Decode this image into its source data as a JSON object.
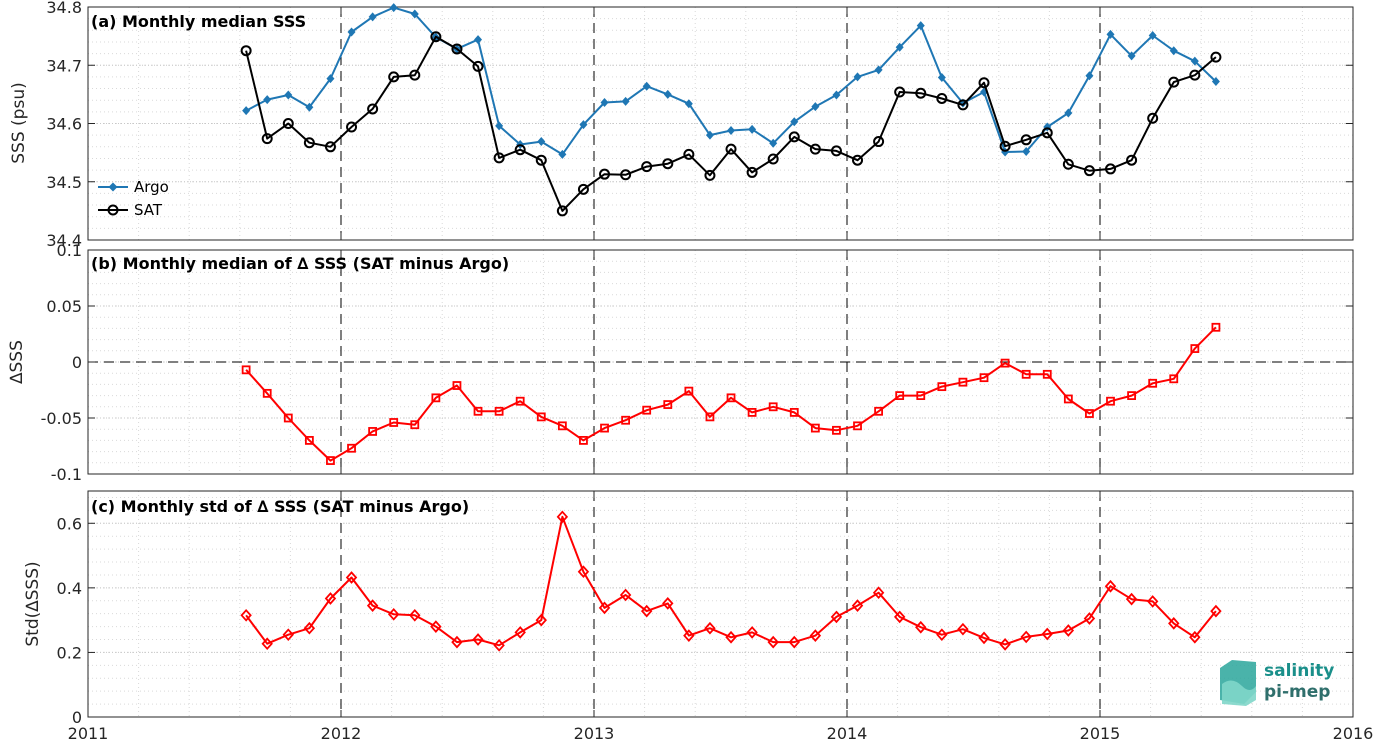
{
  "chart_data": [
    {
      "panel": "a",
      "type": "line",
      "title": "(a) Monthly median SSS",
      "ylabel": "SSS (psu)",
      "xlim": [
        2011,
        2016
      ],
      "ylim": [
        34.4,
        34.8
      ],
      "yticks": [
        34.4,
        34.5,
        34.6,
        34.7,
        34.8
      ],
      "ytick_labels": [
        "34.4",
        "34.5",
        "34.6",
        "34.7",
        "34.8"
      ],
      "grid": true,
      "legend_position": "bottom-left",
      "x_start": 2011.625,
      "x_step": 0.08333,
      "series": [
        {
          "name": "Argo",
          "color": "#1f77b4",
          "marker": "diamond",
          "values": [
            34.622,
            34.641,
            34.649,
            34.628,
            34.677,
            34.757,
            34.783,
            34.799,
            34.788,
            34.748,
            34.728,
            34.744,
            34.596,
            34.564,
            34.569,
            34.547,
            34.598,
            34.636,
            34.638,
            34.664,
            34.65,
            34.634,
            34.58,
            34.588,
            34.59,
            34.566,
            34.603,
            34.629,
            34.649,
            34.68,
            34.692,
            34.731,
            34.768,
            34.679,
            34.635,
            34.654,
            34.551,
            34.552,
            34.594,
            34.618,
            34.682,
            34.753,
            34.716,
            34.751,
            34.725,
            34.707,
            34.672
          ]
        },
        {
          "name": "SAT",
          "color": "#000000",
          "marker": "circle",
          "values": [
            34.725,
            34.574,
            34.6,
            34.567,
            34.56,
            34.594,
            34.625,
            34.68,
            34.683,
            34.749,
            34.728,
            34.698,
            34.541,
            34.555,
            34.537,
            34.45,
            34.487,
            34.513,
            34.512,
            34.526,
            34.531,
            34.547,
            34.511,
            34.556,
            34.516,
            34.539,
            34.577,
            34.556,
            34.553,
            34.537,
            34.569,
            34.654,
            34.652,
            34.643,
            34.632,
            34.67,
            34.561,
            34.572,
            34.584,
            34.53,
            34.519,
            34.522,
            34.537,
            34.609,
            34.671,
            34.683,
            34.714
          ]
        }
      ]
    },
    {
      "panel": "b",
      "type": "line",
      "title": "(b) Monthly median of ∆ SSS (SAT minus Argo)",
      "ylabel": "∆SSS",
      "xlim": [
        2011,
        2016
      ],
      "ylim": [
        -0.1,
        0.1
      ],
      "yticks": [
        -0.1,
        -0.05,
        0,
        0.05,
        0.1
      ],
      "ytick_labels": [
        "-0.1",
        "-0.05",
        "0",
        "0.05",
        "0.1"
      ],
      "grid": true,
      "zero_line": true,
      "x_start": 2011.625,
      "x_step": 0.08333,
      "series": [
        {
          "color": "#ff0000",
          "marker": "square",
          "values": [
            -0.007,
            -0.028,
            -0.05,
            -0.07,
            -0.088,
            -0.077,
            -0.062,
            -0.054,
            -0.056,
            -0.032,
            -0.021,
            -0.044,
            -0.044,
            -0.035,
            -0.049,
            -0.057,
            -0.07,
            -0.059,
            -0.052,
            -0.043,
            -0.038,
            -0.026,
            -0.049,
            -0.032,
            -0.045,
            -0.04,
            -0.045,
            -0.059,
            -0.061,
            -0.057,
            -0.044,
            -0.03,
            -0.03,
            -0.022,
            -0.018,
            -0.014,
            -0.001,
            -0.011,
            -0.011,
            -0.033,
            -0.046,
            -0.035,
            -0.03,
            -0.019,
            -0.015,
            0.012,
            0.031
          ]
        }
      ]
    },
    {
      "panel": "c",
      "type": "line",
      "title": "(c) Monthly std of ∆ SSS (SAT minus Argo)",
      "ylabel": "Std(∆SSS)",
      "xlim": [
        2011,
        2016
      ],
      "ylim": [
        0,
        0.7
      ],
      "yticks": [
        0,
        0.2,
        0.4,
        0.6
      ],
      "ytick_labels": [
        "0",
        "0.2",
        "0.4",
        "0.6"
      ],
      "xticks": [
        2011,
        2012,
        2013,
        2014,
        2015,
        2016
      ],
      "xtick_labels": [
        "2011",
        "2012",
        "2013",
        "2014",
        "2015",
        "2016"
      ],
      "grid": true,
      "x_start": 2011.625,
      "x_step": 0.08333,
      "series": [
        {
          "color": "#ff0000",
          "marker": "diamond-open",
          "values": [
            0.315,
            0.227,
            0.255,
            0.275,
            0.367,
            0.432,
            0.345,
            0.318,
            0.315,
            0.28,
            0.232,
            0.24,
            0.222,
            0.262,
            0.3,
            0.62,
            0.45,
            0.338,
            0.378,
            0.328,
            0.352,
            0.252,
            0.275,
            0.247,
            0.262,
            0.232,
            0.232,
            0.252,
            0.31,
            0.345,
            0.385,
            0.31,
            0.278,
            0.255,
            0.272,
            0.245,
            0.225,
            0.248,
            0.257,
            0.268,
            0.305,
            0.405,
            0.365,
            0.358,
            0.29,
            0.247,
            0.328
          ]
        }
      ]
    }
  ],
  "logo": {
    "line1": "salinity",
    "line2": "pi-mep"
  }
}
